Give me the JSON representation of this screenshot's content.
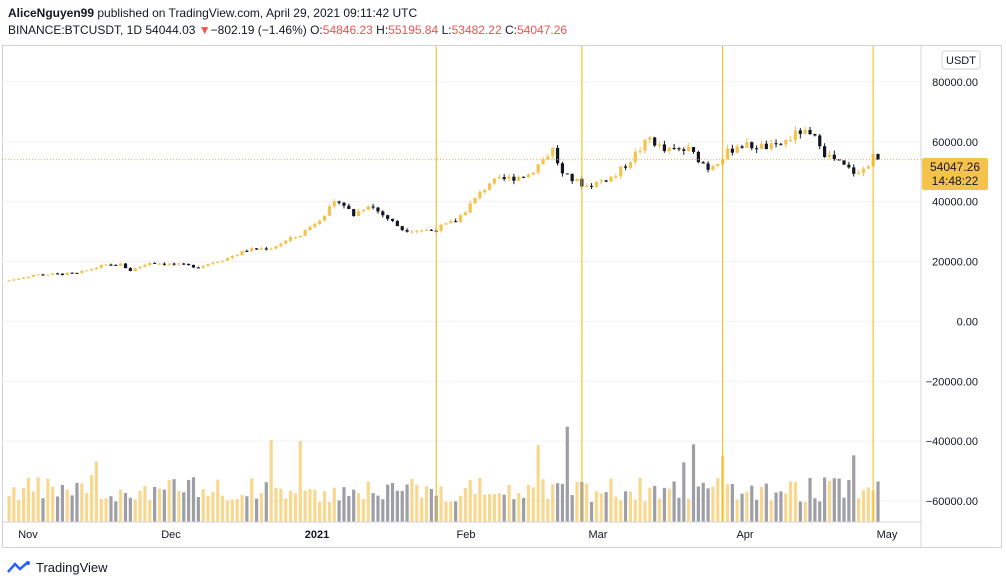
{
  "header": {
    "publisher": "AliceNguyen99",
    "published_text": " published on TradingView.com, April 29, 2021 09:11:42 UTC",
    "symbol": "BINANCE:BTCUSDT, 1D",
    "last": "54044.03",
    "change_arrow": "▼",
    "change": "−802.19 (−1.46%)",
    "o_label": "O:",
    "o_value": "54846.23",
    "h_label": "H:",
    "h_value": "55195.84",
    "l_label": "L:",
    "l_value": "53482.22",
    "c_label": "C:",
    "c_value": "54047.26"
  },
  "currency_badge": "USDT",
  "price_label": {
    "price": "54047.26",
    "countdown": "14:48:22"
  },
  "footer": {
    "brand": "TradingView"
  },
  "colors": {
    "up": "#f5c24c",
    "down": "#131722",
    "vol_up": "#f8d88f",
    "vol_down": "#9e9ea6",
    "marker": "#f0b90b",
    "red": "#ef5350"
  },
  "chart_data": {
    "type": "candlestick",
    "x_axis": {
      "ticks": [
        "Nov",
        "Dec",
        "2021",
        "Feb",
        "Mar",
        "Apr",
        "May"
      ],
      "start": "2020-11-01",
      "end": "2021-04-29"
    },
    "y_axis": {
      "min": -67000,
      "max": 92000,
      "ticks": [
        80000,
        60000,
        40000,
        20000,
        0,
        -20000,
        -40000,
        -60000
      ],
      "tick_labels": [
        "80000.00",
        "60000.00",
        "40000.00",
        "20000.00",
        "0.00",
        "−20000.00",
        "−40000.00",
        "−60000.00"
      ]
    },
    "vertical_markers": [
      "2021-01-28",
      "2021-02-27",
      "2021-03-28",
      "2021-04-28"
    ],
    "last_close": 54047.26,
    "close_series": [
      [
        "2020-11-01",
        13700
      ],
      [
        "2020-11-06",
        15500
      ],
      [
        "2020-11-15",
        16000
      ],
      [
        "2020-11-20",
        18500
      ],
      [
        "2020-11-24",
        19000
      ],
      [
        "2020-11-26",
        17000
      ],
      [
        "2020-11-30",
        19700
      ],
      [
        "2020-12-10",
        18300
      ],
      [
        "2020-12-16",
        21200
      ],
      [
        "2020-12-20",
        23800
      ],
      [
        "2020-12-25",
        24600
      ],
      [
        "2020-12-31",
        29000
      ],
      [
        "2021-01-03",
        33000
      ],
      [
        "2021-01-08",
        40600
      ],
      [
        "2021-01-11",
        35500
      ],
      [
        "2021-01-14",
        39200
      ],
      [
        "2021-01-21",
        30800
      ],
      [
        "2021-01-27",
        30400
      ],
      [
        "2021-02-01",
        33500
      ],
      [
        "2021-02-08",
        46400
      ],
      [
        "2021-02-16",
        49100
      ],
      [
        "2021-02-21",
        57500
      ],
      [
        "2021-02-23",
        48900
      ],
      [
        "2021-02-28",
        45200
      ],
      [
        "2021-03-06",
        48800
      ],
      [
        "2021-03-13",
        61200
      ],
      [
        "2021-03-16",
        56900
      ],
      [
        "2021-03-21",
        57300
      ],
      [
        "2021-03-25",
        51300
      ],
      [
        "2021-03-31",
        58900
      ],
      [
        "2021-04-08",
        58100
      ],
      [
        "2021-04-13",
        63500
      ],
      [
        "2021-04-17",
        60000
      ],
      [
        "2021-04-18",
        56200
      ],
      [
        "2021-04-22",
        51700
      ],
      [
        "2021-04-25",
        49000
      ],
      [
        "2021-04-28",
        54800
      ],
      [
        "2021-04-29",
        54047
      ]
    ],
    "volume_note": "Volume histogram drawn along the bottom of the pane (values not labeled)"
  }
}
